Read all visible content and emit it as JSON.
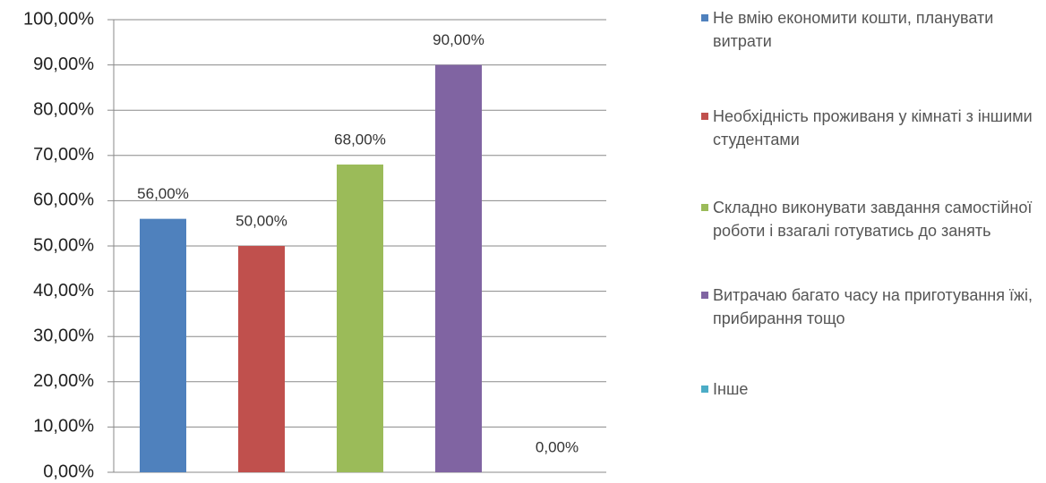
{
  "chart_data": {
    "type": "bar",
    "categories": [
      null
    ],
    "series": [
      {
        "name": "Не вмію економити кошти, планувати витрати",
        "color": "#4f81bd",
        "values": [
          56
        ],
        "value_labels": [
          "56,00%"
        ]
      },
      {
        "name": "Необхідність проживаня у кімнаті з іншими студентами",
        "color": "#c0504d",
        "values": [
          50
        ],
        "value_labels": [
          "50,00%"
        ]
      },
      {
        "name": "Складно виконувати завдання самостійної роботи і взагалі готуватись до занять",
        "color": "#9bbb59",
        "values": [
          68
        ],
        "value_labels": [
          "68,00%"
        ]
      },
      {
        "name": "Витрачаю багато часу на приготування їжі, прибирання тощо",
        "color": "#8064a2",
        "values": [
          90
        ],
        "value_labels": [
          "90,00%"
        ]
      },
      {
        "name": "Інше",
        "color": "#4bacc6",
        "values": [
          0
        ],
        "value_labels": [
          "0,00%"
        ]
      }
    ],
    "ylim": [
      0,
      100
    ],
    "yticks": [
      {
        "value": 0,
        "label": "0,00%"
      },
      {
        "value": 10,
        "label": "10,00%"
      },
      {
        "value": 20,
        "label": "20,00%"
      },
      {
        "value": 30,
        "label": "30,00%"
      },
      {
        "value": 40,
        "label": "40,00%"
      },
      {
        "value": 50,
        "label": "50,00%"
      },
      {
        "value": 60,
        "label": "60,00%"
      },
      {
        "value": 70,
        "label": "70,00%"
      },
      {
        "value": 80,
        "label": "80,00%"
      },
      {
        "value": 90,
        "label": "90,00%"
      },
      {
        "value": 100,
        "label": "100,00%"
      }
    ],
    "grid": true,
    "legend": "right"
  }
}
